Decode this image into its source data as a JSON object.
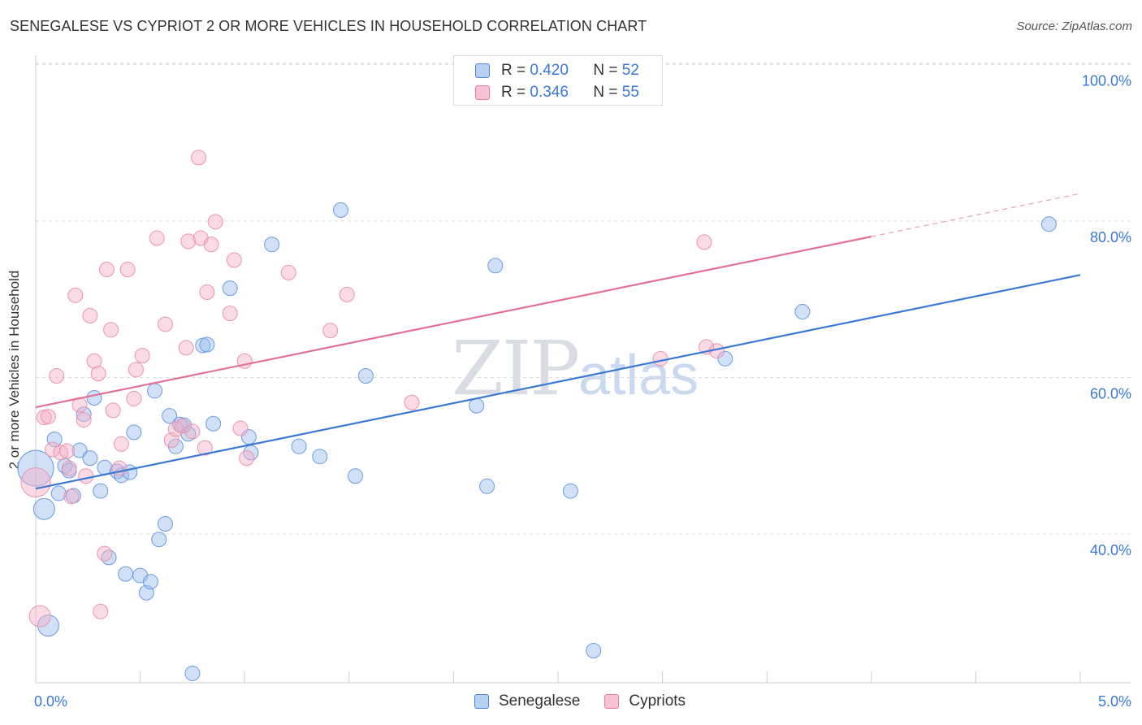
{
  "title": "SENEGALESE VS CYPRIOT 2 OR MORE VEHICLES IN HOUSEHOLD CORRELATION CHART",
  "source": "Source: ZipAtlas.com",
  "watermark": {
    "zip": "ZIP",
    "atlas": "atlas"
  },
  "legend": {
    "r_label": "R =",
    "n_label": "N =",
    "rows": [
      {
        "r": "0.420",
        "n": "52"
      },
      {
        "r": "0.346",
        "n": "55"
      }
    ]
  },
  "chart_data": {
    "type": "scatter",
    "title": "SENEGALESE VS CYPRIOT 2 OR MORE VEHICLES IN HOUSEHOLD CORRELATION CHART",
    "xlabel": "",
    "ylabel": "2 or more Vehicles in Household",
    "xlim": [
      0,
      5
    ],
    "ylim": [
      21,
      102
    ],
    "x_tick_labels": [
      "0.0%",
      "5.0%"
    ],
    "y_ticks": [
      40,
      60,
      80,
      100
    ],
    "y_tick_labels": [
      "40.0%",
      "60.0%",
      "80.0%",
      "100.0%"
    ],
    "grid": true,
    "legend_position": "top-center",
    "colors": {
      "senegalese": "#4a84d8",
      "cypriots": "#e87a9f",
      "blue_fill": "#b8d0f2",
      "pink_fill": "#f7c3d4"
    },
    "series": [
      {
        "name": "Senegalese",
        "R": 0.42,
        "N": 52,
        "trend": {
          "x0": 0,
          "y0": 45.8,
          "x1": 5,
          "y1": 73.1
        },
        "points": [
          [
            0.0,
            48.4,
            22
          ],
          [
            0.04,
            43.2,
            13
          ],
          [
            0.06,
            28.3,
            13
          ],
          [
            0.09,
            52.1,
            9
          ],
          [
            0.11,
            45.2,
            9
          ],
          [
            0.14,
            48.7,
            9
          ],
          [
            0.16,
            48.1,
            9
          ],
          [
            0.18,
            44.9,
            9
          ],
          [
            0.21,
            50.7,
            9
          ],
          [
            0.23,
            55.3,
            9
          ],
          [
            0.26,
            49.7,
            9
          ],
          [
            0.28,
            57.4,
            9
          ],
          [
            0.31,
            45.5,
            9
          ],
          [
            0.33,
            48.5,
            9
          ],
          [
            0.35,
            37.0,
            9
          ],
          [
            0.39,
            48.0,
            9
          ],
          [
            0.41,
            47.5,
            9
          ],
          [
            0.43,
            34.9,
            9
          ],
          [
            0.45,
            47.9,
            9
          ],
          [
            0.47,
            53.0,
            9
          ],
          [
            0.5,
            34.7,
            9
          ],
          [
            0.53,
            32.5,
            9
          ],
          [
            0.55,
            33.9,
            9
          ],
          [
            0.57,
            58.3,
            9
          ],
          [
            0.59,
            39.3,
            9
          ],
          [
            0.62,
            41.3,
            9
          ],
          [
            0.64,
            55.1,
            9
          ],
          [
            0.67,
            51.2,
            9
          ],
          [
            0.69,
            54.0,
            9
          ],
          [
            0.71,
            53.9,
            9
          ],
          [
            0.73,
            52.8,
            9
          ],
          [
            0.75,
            22.2,
            9
          ],
          [
            0.8,
            64.1,
            9
          ],
          [
            0.82,
            64.2,
            9
          ],
          [
            0.85,
            54.1,
            9
          ],
          [
            0.93,
            71.4,
            9
          ],
          [
            1.02,
            52.4,
            9
          ],
          [
            1.03,
            50.4,
            9
          ],
          [
            1.13,
            77.0,
            9
          ],
          [
            1.26,
            51.2,
            9
          ],
          [
            1.36,
            49.9,
            9
          ],
          [
            1.46,
            81.4,
            9
          ],
          [
            1.53,
            47.4,
            9
          ],
          [
            1.58,
            60.2,
            9
          ],
          [
            2.11,
            56.4,
            9
          ],
          [
            2.16,
            46.1,
            9
          ],
          [
            2.2,
            74.3,
            9
          ],
          [
            2.56,
            45.5,
            9
          ],
          [
            2.67,
            25.1,
            9
          ],
          [
            3.3,
            62.4,
            9
          ],
          [
            3.67,
            68.4,
            9
          ],
          [
            4.85,
            79.6,
            9
          ]
        ]
      },
      {
        "name": "Cypriots",
        "R": 0.346,
        "N": 55,
        "trend": {
          "x0": 0,
          "y0": 56.2,
          "x1": 4.0,
          "y1": 78.0,
          "dashed_to": {
            "x": 5,
            "y": 83.5
          }
        },
        "points": [
          [
            0.0,
            46.6,
            18
          ],
          [
            0.02,
            29.5,
            13
          ],
          [
            0.04,
            54.9,
            9
          ],
          [
            0.06,
            55.0,
            9
          ],
          [
            0.08,
            50.8,
            9
          ],
          [
            0.1,
            60.2,
            9
          ],
          [
            0.12,
            50.4,
            9
          ],
          [
            0.15,
            50.6,
            9
          ],
          [
            0.17,
            44.8,
            9
          ],
          [
            0.19,
            70.5,
            9
          ],
          [
            0.21,
            56.5,
            9
          ],
          [
            0.23,
            54.6,
            9
          ],
          [
            0.24,
            47.4,
            9
          ],
          [
            0.26,
            67.9,
            9
          ],
          [
            0.28,
            62.1,
            9
          ],
          [
            0.3,
            60.5,
            9
          ],
          [
            0.31,
            30.1,
            9
          ],
          [
            0.33,
            37.5,
            9
          ],
          [
            0.34,
            73.8,
            9
          ],
          [
            0.36,
            66.1,
            9
          ],
          [
            0.37,
            55.8,
            9
          ],
          [
            0.4,
            48.4,
            9
          ],
          [
            0.41,
            51.5,
            9
          ],
          [
            0.44,
            73.8,
            9
          ],
          [
            0.47,
            57.3,
            9
          ],
          [
            0.48,
            61.0,
            9
          ],
          [
            0.51,
            62.8,
            9
          ],
          [
            0.58,
            77.8,
            9
          ],
          [
            0.62,
            66.8,
            9
          ],
          [
            0.65,
            52.0,
            9
          ],
          [
            0.67,
            53.4,
            9
          ],
          [
            0.7,
            53.8,
            9
          ],
          [
            0.72,
            63.8,
            9
          ],
          [
            0.73,
            77.4,
            9
          ],
          [
            0.75,
            53.1,
            9
          ],
          [
            0.78,
            88.1,
            9
          ],
          [
            0.79,
            77.8,
            9
          ],
          [
            0.81,
            51.0,
            9
          ],
          [
            0.82,
            70.9,
            9
          ],
          [
            0.84,
            77.0,
            9
          ],
          [
            0.86,
            79.9,
            9
          ],
          [
            0.93,
            68.2,
            9
          ],
          [
            0.95,
            75.0,
            9
          ],
          [
            0.98,
            53.5,
            9
          ],
          [
            1.01,
            49.7,
            9
          ],
          [
            1.0,
            62.1,
            9
          ],
          [
            1.21,
            73.4,
            9
          ],
          [
            1.41,
            66.0,
            9
          ],
          [
            1.49,
            70.6,
            9
          ],
          [
            1.8,
            56.8,
            9
          ],
          [
            2.99,
            62.4,
            9
          ],
          [
            3.2,
            77.3,
            9
          ],
          [
            3.21,
            63.9,
            9
          ],
          [
            3.26,
            63.4,
            9
          ],
          [
            0.16,
            48.4,
            9
          ]
        ]
      }
    ]
  }
}
